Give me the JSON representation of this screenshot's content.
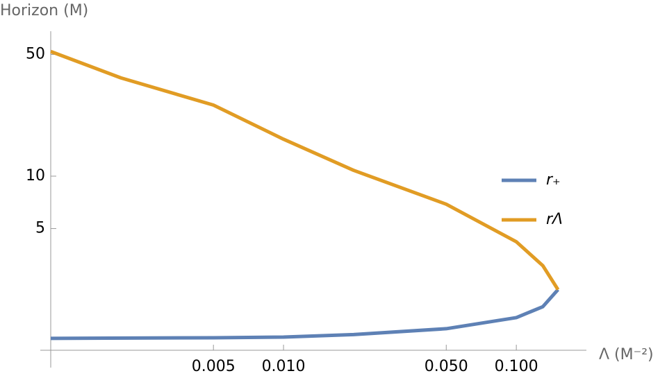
{
  "chart_data": {
    "type": "line",
    "x_label": "Λ (M⁻²)",
    "y_label": "Horizon (M)",
    "log_x": true,
    "log_y": true,
    "legend": "right",
    "xlim": [
      0.001,
      0.2
    ],
    "ylim": [
      1,
      68
    ],
    "xticks": [
      0.005,
      {
        "value": 0.01,
        "label": "0.010"
      },
      {
        "value": 0.05,
        "label": "0.050"
      },
      {
        "value": 0.1,
        "label": "0.100"
      }
    ],
    "yticks": [
      5,
      10,
      50
    ],
    "series": [
      {
        "name": "r₊",
        "color": "#5e81b5",
        "x": [
          0.001,
          0.005,
          0.01,
          0.02,
          0.05,
          0.1,
          0.13,
          0.151
        ],
        "values": [
          1.17,
          1.18,
          1.19,
          1.23,
          1.33,
          1.54,
          1.78,
          2.23
        ]
      },
      {
        "name": "rΛ",
        "color": "#e19c24",
        "x": [
          0.001,
          0.002,
          0.005,
          0.01,
          0.02,
          0.05,
          0.1,
          0.13,
          0.151
        ],
        "values": [
          52,
          36.7,
          25.6,
          16.3,
          10.8,
          6.9,
          4.2,
          3.06,
          2.23
        ]
      }
    ]
  }
}
